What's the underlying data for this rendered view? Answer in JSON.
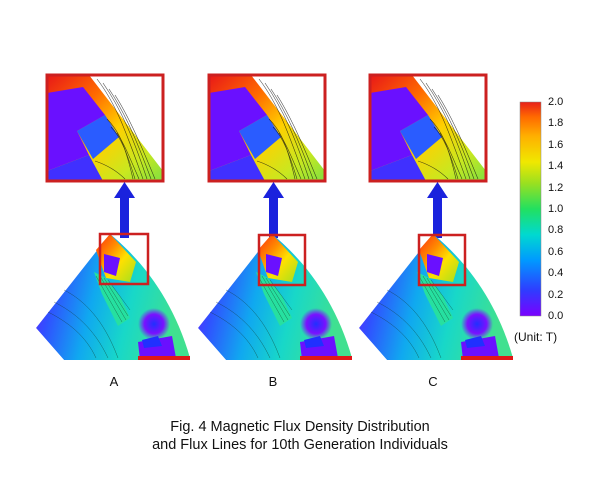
{
  "panels": [
    {
      "label": "A"
    },
    {
      "label": "B"
    },
    {
      "label": "C"
    }
  ],
  "colorbar": {
    "ticks": [
      "2.0",
      "1.8",
      "1.6",
      "1.4",
      "1.2",
      "1.0",
      "0.8",
      "0.6",
      "0.4",
      "0.2",
      "0.0"
    ],
    "unit": "(Unit: T)",
    "colors": [
      "#7a00ff",
      "#2f3cff",
      "#0099ff",
      "#00d9d0",
      "#22e060",
      "#9ae020",
      "#f0e800",
      "#ffb000",
      "#ff6a00",
      "#e8201a"
    ]
  },
  "caption": {
    "line1": "Fig. 4 Magnetic Flux Density Distribution",
    "line2": "and Flux Lines for 10th Generation Individuals"
  },
  "colors": {
    "frame": "#cc2020",
    "arrow": "#1a22dd"
  }
}
